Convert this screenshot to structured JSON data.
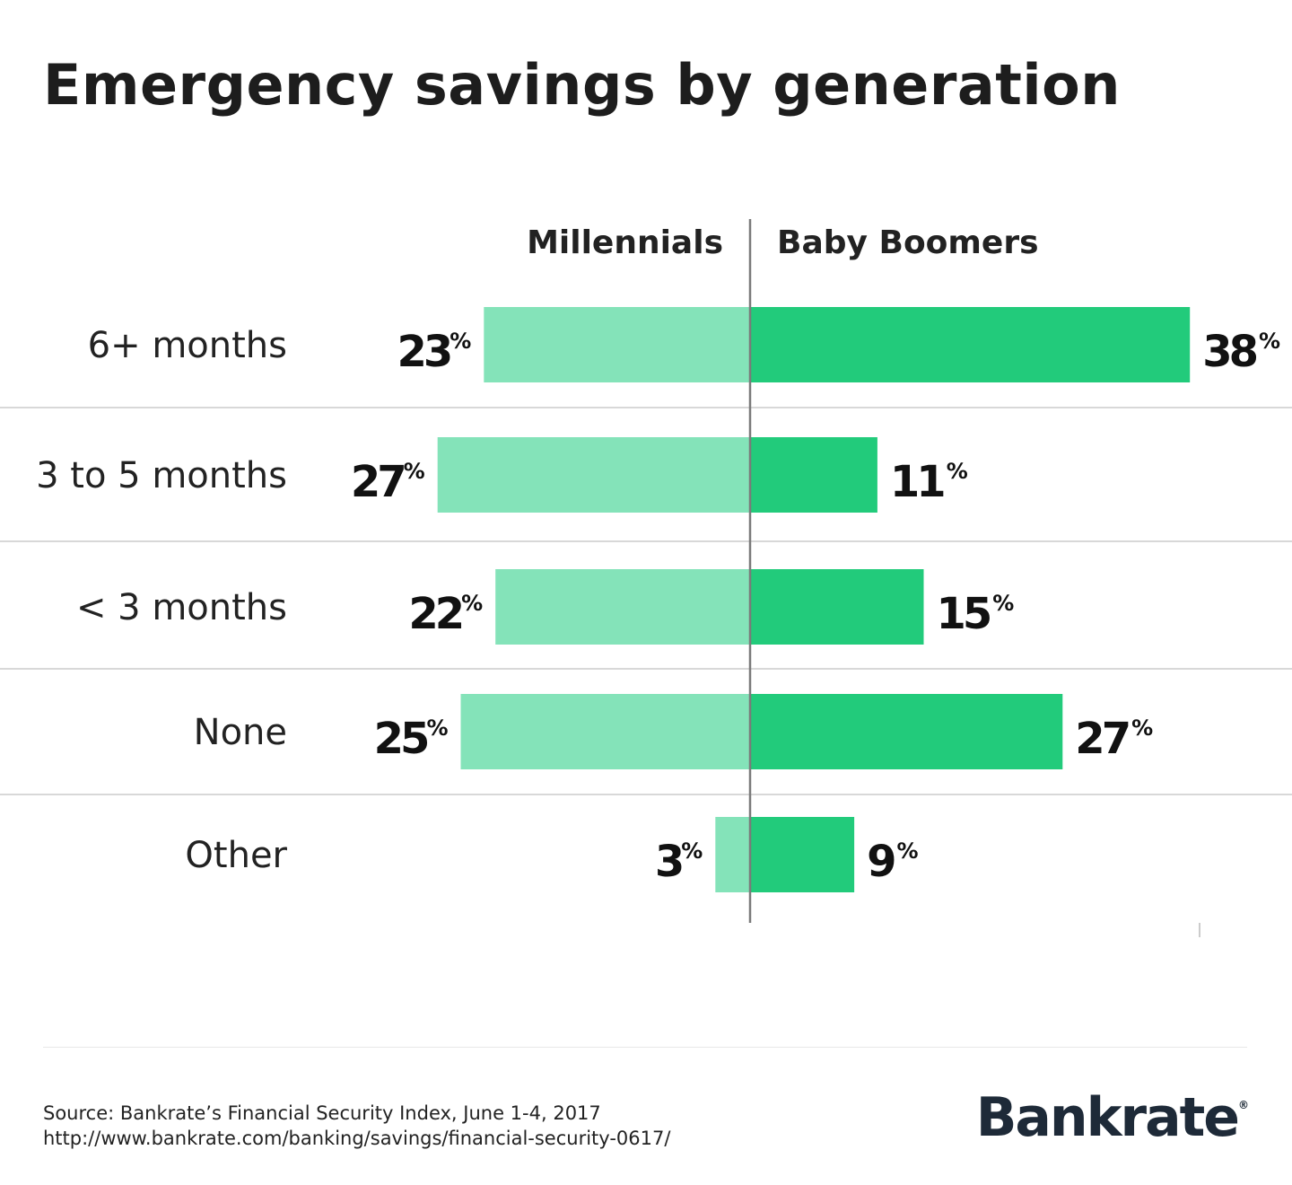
{
  "title": "Emergency savings by generation",
  "chart_data": {
    "type": "bar",
    "orientation": "horizontal-diverging",
    "categories": [
      "6+ months",
      "3 to 5 months",
      "< 3 months",
      "None",
      "Other"
    ],
    "series": [
      {
        "name": "Millennials",
        "values": [
          23,
          27,
          22,
          25,
          3
        ],
        "color": "#84e3b9",
        "direction": "left"
      },
      {
        "name": "Baby Boomers",
        "values": [
          38,
          11,
          15,
          27,
          9
        ],
        "color": "#22cb7b",
        "direction": "right"
      }
    ],
    "value_suffix": "%",
    "xlim": [
      0,
      40
    ],
    "grid": false,
    "row_dividers": true,
    "divider_color": "#cccccc",
    "axis_color": "#7a7a7a"
  },
  "footer": {
    "source": "Source: Bankrate’s Financial Security Index, June 1-4, 2017",
    "url": "http://www.bankrate.com/banking/savings/financial-security-0617/",
    "logo_text": "Bankrate",
    "logo_mark": "®"
  }
}
